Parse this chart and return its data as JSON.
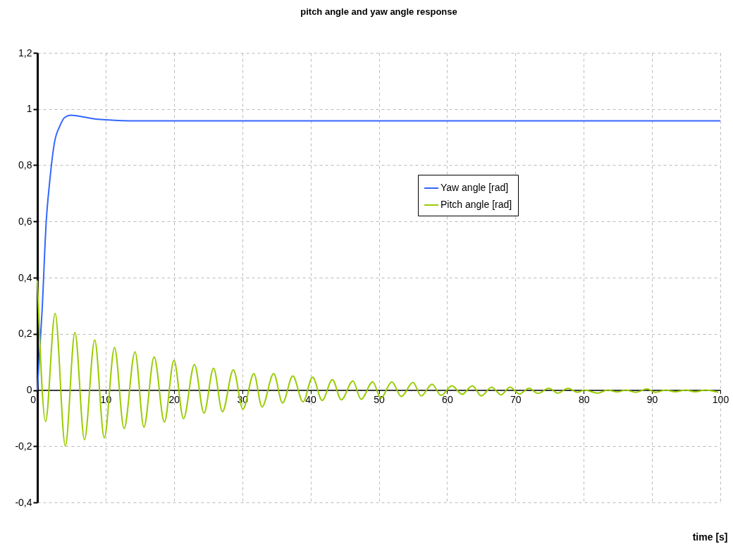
{
  "chart_data": {
    "type": "line",
    "title": "pitch angle and yaw angle response",
    "xlabel": "time [s]",
    "xlim": [
      0,
      100
    ],
    "xticks": [
      0,
      10,
      20,
      30,
      40,
      50,
      60,
      70,
      80,
      90,
      100
    ],
    "ylim": [
      -0.4,
      1.2
    ],
    "yticks": [
      {
        "value": -0.4,
        "label": "-0,4"
      },
      {
        "value": -0.2,
        "label": "-0,2"
      },
      0,
      {
        "value": 0.2,
        "label": "0,2"
      },
      {
        "value": 0.4,
        "label": "0,4"
      },
      {
        "value": 0.6,
        "label": "0,6"
      },
      {
        "value": 0.8,
        "label": "0,8"
      },
      1,
      {
        "value": 1.2,
        "label": "1,2"
      }
    ],
    "grid": true,
    "legend": "right",
    "marker": "none",
    "line_style": "solid",
    "series": [
      {
        "name": "Yaw angle [rad]",
        "color": "#3366ff",
        "x": [
          0,
          0.7,
          1.3,
          1.8,
          2.5,
          3.3,
          4.0,
          4.9,
          6.8,
          8.4,
          10.1,
          14.2,
          100
        ],
        "values": [
          0,
          0.285,
          0.6,
          0.74,
          0.88,
          0.94,
          0.97,
          0.978,
          0.972,
          0.965,
          0.962,
          0.958,
          0.958
        ]
      },
      {
        "name": "Pitch angle [rad]",
        "color": "#99cc00",
        "x": [
          0,
          1.2,
          2.6,
          4.1,
          5.5,
          6.9,
          8.4,
          9.8,
          11.3,
          12.7,
          14.3,
          15.6,
          17.1,
          18.6,
          20.0,
          21.4,
          23.0,
          24.4,
          25.8,
          27.1,
          28.7,
          30.1,
          31.7,
          32.9,
          34.6,
          35.9,
          37.4,
          38.9,
          40.3,
          41.7,
          43.2,
          44.5,
          46.2,
          47.4,
          49.1,
          50.3,
          51.9,
          53.3,
          55.0,
          56.2,
          57.8,
          59.1,
          60.7,
          62.2,
          63.7,
          65.0,
          66.5,
          67.9,
          69.2,
          70.6,
          72.0,
          73.3,
          74.9,
          76.2,
          77.7,
          79.1,
          80.1,
          82.1,
          83.5,
          84.9,
          86.2,
          87.6,
          89.3,
          90.5,
          92.0,
          93.4,
          94.9,
          96.3,
          97.8,
          99.7
        ],
        "values": [
          0.39,
          -0.112,
          0.273,
          -0.2,
          0.205,
          -0.177,
          0.178,
          -0.17,
          0.151,
          -0.137,
          0.136,
          -0.132,
          0.118,
          -0.114,
          0.106,
          -0.102,
          0.091,
          -0.082,
          0.078,
          -0.077,
          0.072,
          -0.068,
          0.058,
          -0.06,
          0.058,
          -0.046,
          0.05,
          -0.042,
          0.046,
          -0.037,
          0.037,
          -0.035,
          0.032,
          -0.033,
          0.029,
          -0.029,
          0.029,
          -0.023,
          0.027,
          -0.021,
          0.021,
          -0.019,
          0.015,
          -0.015,
          0.015,
          -0.021,
          0.01,
          -0.017,
          0.01,
          -0.014,
          0.006,
          -0.012,
          0.006,
          -0.011,
          0.006,
          -0.008,
          0,
          -0.011,
          0,
          -0.007,
          0,
          -0.008,
          0.004,
          -0.008,
          0,
          -0.006,
          0,
          -0.006,
          0,
          -0.008
        ]
      }
    ]
  }
}
